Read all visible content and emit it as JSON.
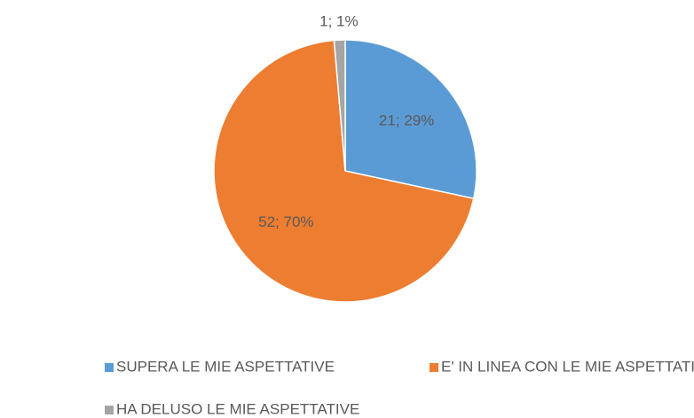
{
  "chart_data": {
    "type": "pie",
    "categories": [
      "SUPERA LE MIE ASPETTATIVE",
      "E' IN LINEA CON LE MIE ASPETTATIVE",
      "HA DELUSO LE MIE ASPETTATIVE"
    ],
    "values": [
      21,
      52,
      1
    ],
    "value_labels": [
      "21; 29%",
      "52; 70%",
      "1; 1%"
    ],
    "colors": [
      "#5b9bd5",
      "#ed7d31",
      "#a5a5a5"
    ],
    "legend": "bottom"
  }
}
